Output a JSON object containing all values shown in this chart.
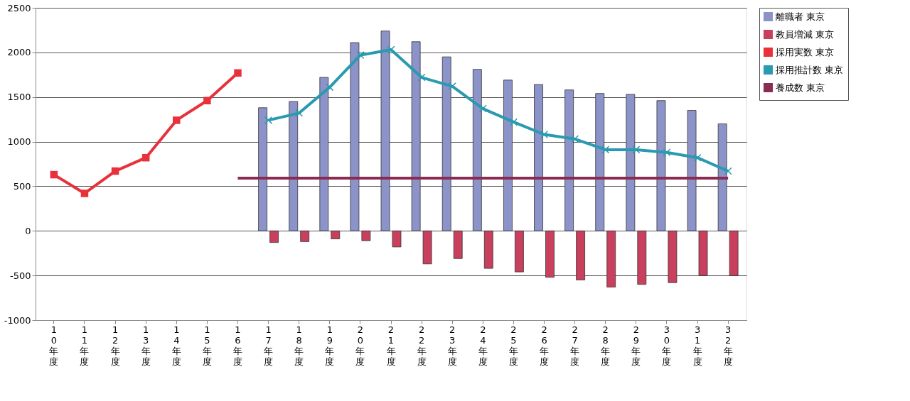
{
  "chart_data": {
    "type": "bar",
    "categories": [
      "10年度",
      "11年度",
      "12年度",
      "13年度",
      "14年度",
      "15年度",
      "16年度",
      "17年度",
      "18年度",
      "19年度",
      "20年度",
      "21年度",
      "22年度",
      "23年度",
      "24年度",
      "25年度",
      "26年度",
      "27年度",
      "28年度",
      "29年度",
      "30年度",
      "31年度",
      "32年度"
    ],
    "series": [
      {
        "name": "離職者 東京",
        "color": "#8b93c9",
        "values": [
          null,
          null,
          null,
          null,
          null,
          null,
          null,
          1380,
          1450,
          1720,
          2110,
          2240,
          2120,
          1950,
          1810,
          1690,
          1640,
          1580,
          1540,
          1530,
          1460,
          1350,
          1200
        ]
      },
      {
        "name": "教員増減 東京",
        "color": "#c8405e",
        "values": [
          null,
          null,
          null,
          null,
          null,
          null,
          null,
          -130,
          -120,
          -90,
          -110,
          -180,
          -370,
          -310,
          -420,
          -460,
          -520,
          -550,
          -630,
          -600,
          -580,
          -500,
          -500
        ]
      },
      {
        "name": "採用実数 東京",
        "type": "line",
        "marker": "square",
        "color": "#e8313a",
        "values": [
          630,
          420,
          670,
          820,
          1240,
          1460,
          1770,
          null,
          null,
          null,
          null,
          null,
          null,
          null,
          null,
          null,
          null,
          null,
          null,
          null,
          null,
          null,
          null
        ]
      },
      {
        "name": "採用推計数 東京",
        "type": "line",
        "marker": "cross",
        "color": "#2a9ab0",
        "values": [
          null,
          null,
          null,
          null,
          null,
          null,
          null,
          1240,
          1320,
          1610,
          1970,
          2030,
          1720,
          1620,
          1370,
          1220,
          1080,
          1030,
          910,
          910,
          880,
          820,
          670
        ]
      },
      {
        "name": "養成数 東京",
        "type": "line",
        "marker": "none",
        "color": "#8a2c52",
        "values": [
          null,
          null,
          null,
          null,
          null,
          null,
          590,
          590,
          590,
          590,
          590,
          590,
          590,
          590,
          590,
          590,
          590,
          590,
          590,
          590,
          590,
          590,
          590
        ]
      }
    ],
    "ylim": [
      -1000,
      2500
    ],
    "yticks": [
      -1000,
      -500,
      0,
      500,
      1000,
      1500,
      2000,
      2500
    ],
    "grid": "y",
    "legend": "right"
  }
}
